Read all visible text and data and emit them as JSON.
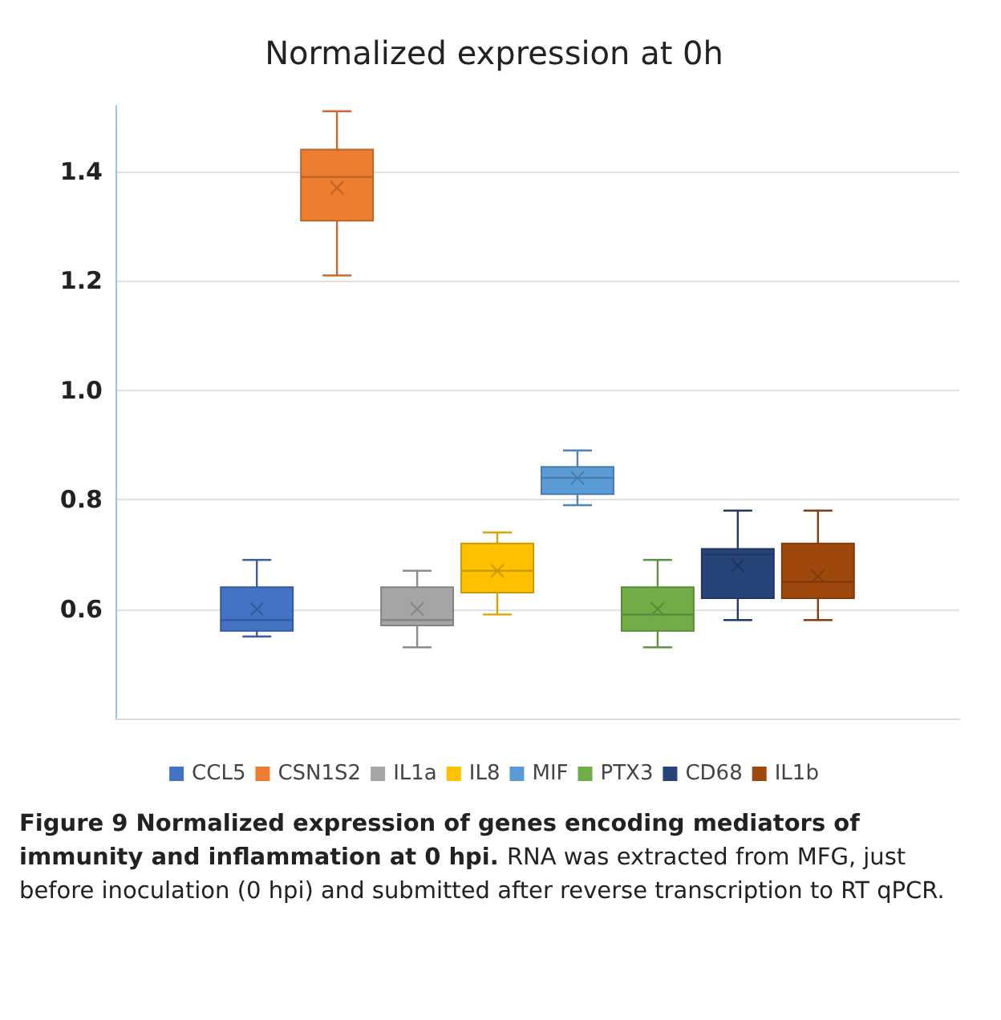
{
  "chart_data": {
    "type": "box",
    "title": "Normalized expression at 0h",
    "categories": [
      null
    ],
    "series": [
      {
        "name": "CCL5",
        "color": "#4472c4",
        "boxes": [
          {
            "low": 0.55,
            "q1": 0.56,
            "median": 0.58,
            "q3": 0.64,
            "high": 0.69,
            "mean": 0.6
          }
        ]
      },
      {
        "name": "CSN1S2",
        "color": "#ed7d31",
        "boxes": [
          {
            "low": 1.21,
            "q1": 1.31,
            "median": 1.39,
            "q3": 1.44,
            "high": 1.51,
            "mean": 1.37
          }
        ]
      },
      {
        "name": "IL1a",
        "color": "#a5a5a5",
        "boxes": [
          {
            "low": 0.53,
            "q1": 0.57,
            "median": 0.58,
            "q3": 0.64,
            "high": 0.67,
            "mean": 0.6
          }
        ]
      },
      {
        "name": "IL8",
        "color": "#ffc000",
        "boxes": [
          {
            "low": 0.59,
            "q1": 0.63,
            "median": 0.67,
            "q3": 0.72,
            "high": 0.74,
            "mean": 0.67
          }
        ]
      },
      {
        "name": "MIF",
        "color": "#5b9bd5",
        "boxes": [
          {
            "low": 0.79,
            "q1": 0.81,
            "median": 0.84,
            "q3": 0.86,
            "high": 0.89,
            "mean": 0.84
          }
        ]
      },
      {
        "name": "PTX3",
        "color": "#70ad47",
        "boxes": [
          {
            "low": 0.53,
            "q1": 0.56,
            "median": 0.59,
            "q3": 0.64,
            "high": 0.69,
            "mean": 0.6
          }
        ]
      },
      {
        "name": "CD68",
        "color": "#264478",
        "boxes": [
          {
            "low": 0.58,
            "q1": 0.62,
            "median": 0.7,
            "q3": 0.71,
            "high": 0.78,
            "mean": 0.68
          }
        ]
      },
      {
        "name": "IL1b",
        "color": "#9e480e",
        "boxes": [
          {
            "low": 0.58,
            "q1": 0.62,
            "median": 0.65,
            "q3": 0.72,
            "high": 0.78,
            "mean": 0.66
          }
        ]
      }
    ],
    "ylim": [
      0.4,
      1.52
    ],
    "yticks": [
      0.6,
      0.8,
      {
        "value": 1,
        "label": "1.0"
      },
      1.2,
      1.4
    ],
    "grid": "y",
    "legend": "bottom",
    "annotations": [
      "Figure 9  Normalized expression of genes encoding mediators of immunity and inflammation at 0 hpi.",
      "RNA was extracted from MFG, just before inoculation (0 hpi) and submitted after reverse transcription to RT qPCR."
    ]
  }
}
